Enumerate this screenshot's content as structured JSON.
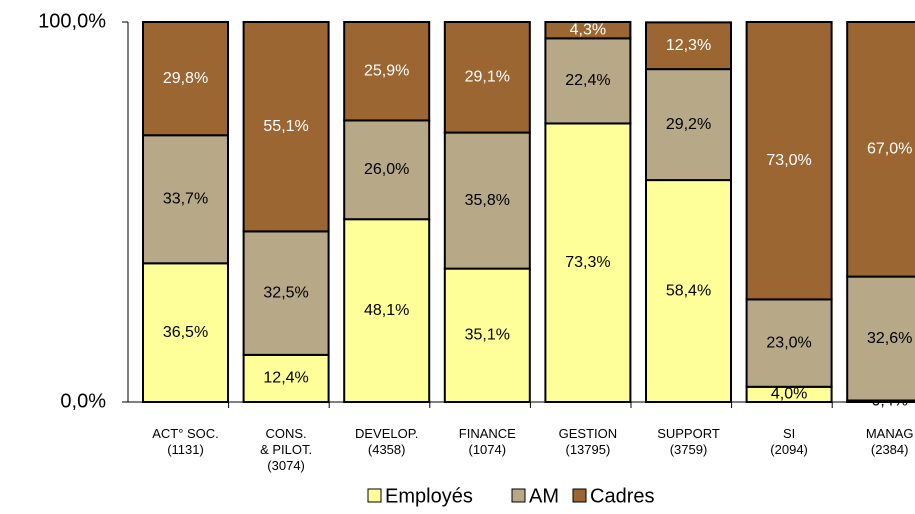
{
  "chart_data": {
    "type": "stacked_bar",
    "categories": [
      "ACT° SOC.\n(1131)",
      "CONS.\n& PILOT.\n(3074)",
      "DEVELOP.\n(4358)",
      "FINANCE\n(1074)",
      "GESTION\n(13795)",
      "SUPPORT\n(3759)",
      "SI\n(2094)",
      "MANAG\n(2384)"
    ],
    "series": [
      {
        "name": "Employés",
        "color": "#ffff99",
        "label_color": "#000000",
        "values": [
          36.5,
          12.4,
          48.1,
          35.1,
          73.3,
          58.4,
          4.0,
          0.4
        ],
        "value_labels": [
          "36,5%",
          "12,4%",
          "48,1%",
          "35,1%",
          "73,3%",
          "58,4%",
          "4,0%",
          "0,4%"
        ]
      },
      {
        "name": "AM",
        "color": "#b7a887",
        "label_color": "#000000",
        "values": [
          33.7,
          32.5,
          26.0,
          35.8,
          22.4,
          29.2,
          23.0,
          32.6
        ],
        "value_labels": [
          "33,7%",
          "32,5%",
          "26,0%",
          "35,8%",
          "22,4%",
          "29,2%",
          "23,0%",
          "32,6%"
        ]
      },
      {
        "name": "Cadres",
        "color": "#9c6633",
        "label_color": "#ffffff",
        "values": [
          29.8,
          55.1,
          25.9,
          29.1,
          4.3,
          12.3,
          73.0,
          67.0
        ],
        "value_labels": [
          "29,8%",
          "55,1%",
          "25,9%",
          "29,1%",
          "4,3%",
          "12,3%",
          "73,0%",
          "67,0%"
        ]
      }
    ],
    "ylim": [
      0,
      100
    ],
    "yticks": [
      {
        "value": 0,
        "label": "0,0%"
      },
      {
        "value": 100,
        "label": "100,0%"
      }
    ],
    "grid": false,
    "legend": "bottom"
  }
}
